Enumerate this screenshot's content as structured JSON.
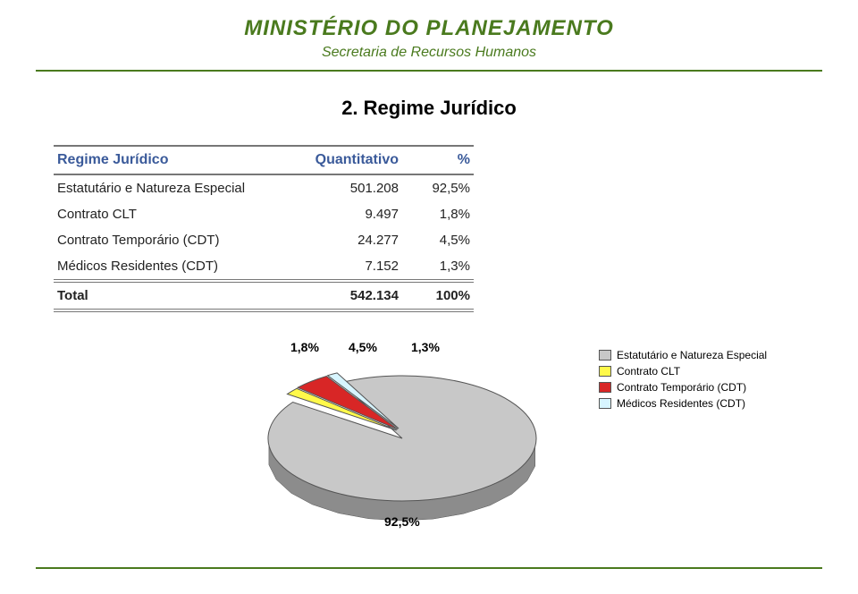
{
  "header": {
    "title": "MINISTÉRIO DO PLANEJAMENTO",
    "subtitle": "Secretaria de Recursos Humanos",
    "title_color": "#4a7a1e",
    "title_fontsize": 24,
    "subtitle_fontsize": 16,
    "rule_color": "#4a7a1e"
  },
  "section": {
    "title": "2. Regime Jurídico",
    "fontsize": 22,
    "color": "#000000"
  },
  "table": {
    "header_color": "#3a5a9a",
    "header_fontsize": 16,
    "body_color": "#222222",
    "body_fontsize": 15,
    "columns": {
      "label": "Regime Jurídico",
      "q": "Quantitativo",
      "p": "%"
    },
    "rows": [
      {
        "label": "Estatutário e Natureza Especial",
        "q": "501.208",
        "p": "92,5%"
      },
      {
        "label": "Contrato CLT",
        "q": "9.497",
        "p": "1,8%"
      },
      {
        "label": "Contrato Temporário (CDT)",
        "q": "24.277",
        "p": "4,5%"
      },
      {
        "label": "Médicos Residentes (CDT)",
        "q": "7.152",
        "p": "1,3%"
      }
    ],
    "total": {
      "label": "Total",
      "q": "542.134",
      "p": "100%"
    }
  },
  "chart": {
    "type": "pie-3d",
    "slices": [
      {
        "label": "Estatutário e Natureza Especial",
        "value": 92.5,
        "pct_text": "92,5%",
        "color": "#c8c8c8"
      },
      {
        "label": "Contrato CLT",
        "value": 1.8,
        "pct_text": "1,8%",
        "color": "#fff94a"
      },
      {
        "label": "Contrato Temporário (CDT)",
        "value": 4.5,
        "pct_text": "4,5%",
        "color": "#d82626"
      },
      {
        "label": "Médicos Residentes (CDT)",
        "value": 1.3,
        "pct_text": "1,3%",
        "color": "#d7f5ff"
      }
    ],
    "label_fontsize": 14,
    "label_color": "#000000",
    "legend_fontsize": 12,
    "stroke": "#555555",
    "depth_darken": 0.7
  },
  "footer_rule_color": "#4a7a1e"
}
